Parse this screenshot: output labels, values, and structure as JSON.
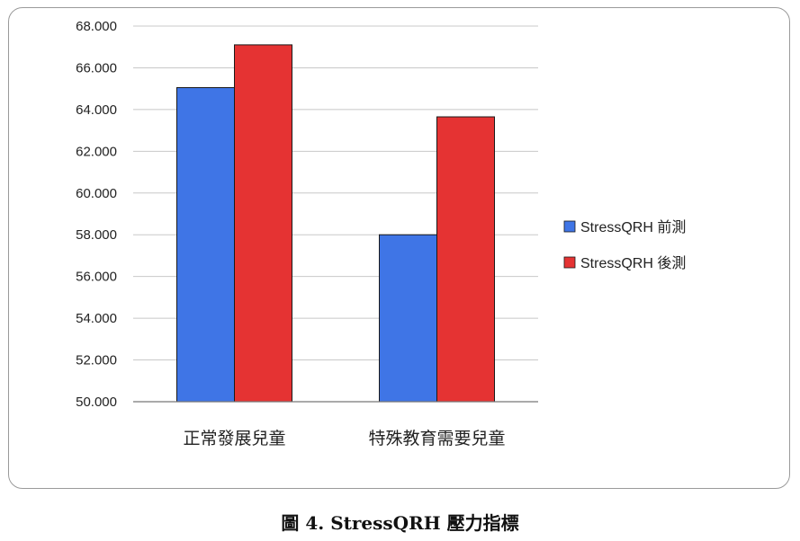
{
  "chart_data": {
    "type": "bar",
    "title": "圖 4. StressQRH 壓力指標",
    "categories": [
      "正常發展兒童",
      "特殊教育需要兒童"
    ],
    "series": [
      {
        "name": "StressQRH  前測",
        "color": "#3f75e6",
        "values": [
          65.05,
          58.0
        ]
      },
      {
        "name": "StressQRH  後測",
        "color": "#e53333",
        "values": [
          67.1,
          63.65
        ]
      }
    ],
    "ylim": [
      50,
      68
    ],
    "yticks": [
      "50.000",
      "52.000",
      "54.000",
      "56.000",
      "58.000",
      "60.000",
      "62.000",
      "64.000",
      "66.000",
      "68.000"
    ],
    "ytick_values": [
      50,
      52,
      54,
      56,
      58,
      60,
      62,
      64,
      66,
      68
    ],
    "grid": true,
    "legend_position": "right"
  }
}
